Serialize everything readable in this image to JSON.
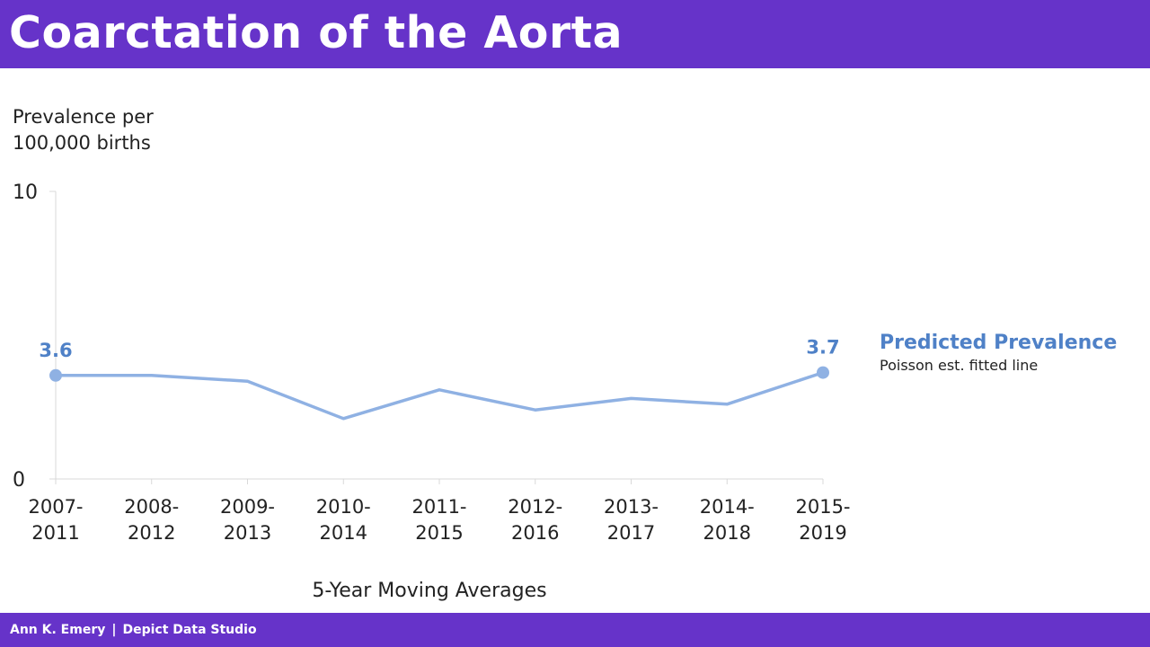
{
  "header": {
    "title": "Coarctation of the Aorta"
  },
  "footer": {
    "author": "Ann K. Emery",
    "separator": "|",
    "studio": "Depict Data Studio"
  },
  "colors": {
    "brand": "#6633c9",
    "series": "#8fb1e3",
    "label": "#4f81c7",
    "axis": "#d9d9d9"
  },
  "chart_data": {
    "type": "line",
    "ylabel": "Prevalence per 100,000 births",
    "xlabel": "5-Year Moving Averages",
    "ylim": [
      0,
      10
    ],
    "yticks": [
      "0",
      "10"
    ],
    "grid": false,
    "categories": [
      [
        "2007-",
        "2011"
      ],
      [
        "2008-",
        "2012"
      ],
      [
        "2009-",
        "2013"
      ],
      [
        "2010-",
        "2014"
      ],
      [
        "2011-",
        "2015"
      ],
      [
        "2012-",
        "2016"
      ],
      [
        "2013-",
        "2017"
      ],
      [
        "2014-",
        "2018"
      ],
      [
        "2015-",
        "2019"
      ]
    ],
    "series": [
      {
        "name": "Predicted Prevalence",
        "description": "Poisson est. fitted line",
        "values": [
          3.6,
          3.6,
          3.4,
          2.1,
          3.1,
          2.4,
          2.8,
          2.6,
          3.7
        ],
        "labeled_points": [
          {
            "index": 0,
            "label": "3.6"
          },
          {
            "index": 8,
            "label": "3.7"
          }
        ]
      }
    ],
    "legend": "right"
  }
}
